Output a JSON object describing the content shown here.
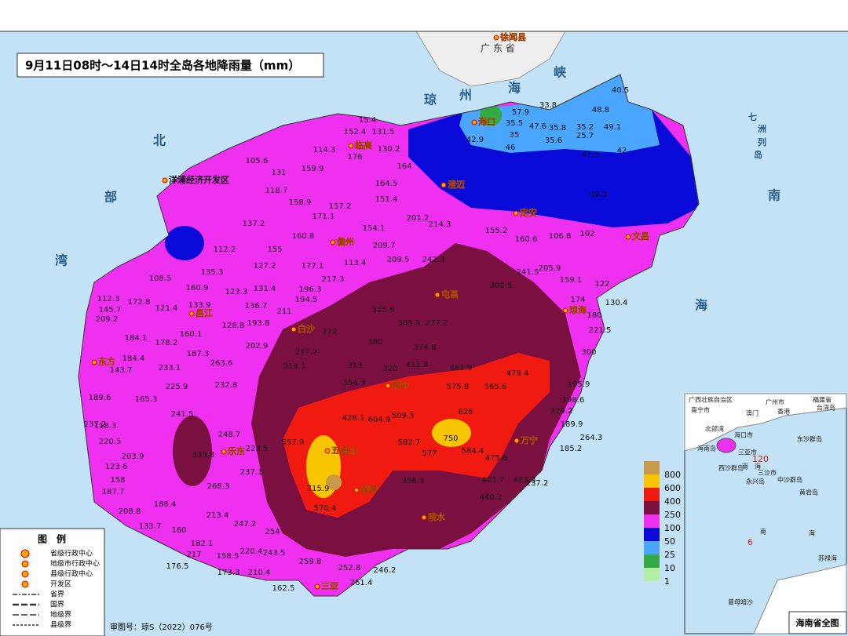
{
  "title": "9月11日08时～14日14时全岛各地降雨量（mm）",
  "province_label": "广 东 省",
  "sea_labels": [
    "琼",
    "州",
    "海",
    "峡",
    "北",
    "部",
    "湾",
    "南",
    "海",
    "七",
    "洲",
    "列",
    "岛"
  ],
  "cities": [
    "徐闻县",
    "海口",
    "文昌",
    "定安",
    "澄迈",
    "临高",
    "儋州",
    "屯昌",
    "琼海",
    "昌江",
    "东方",
    "白沙",
    "琼中",
    "万宁",
    "五指山",
    "保亭",
    "乐东",
    "陵水",
    "三亚",
    "洋浦经济开发区"
  ],
  "stations": [
    40.5,
    48.8,
    33.8,
    57.9,
    35.5,
    47.6,
    35.8,
    35.2,
    49.1,
    25.7,
    35.6,
    35.0,
    42.9,
    46.0,
    42.0,
    47.3,
    69.3,
    15.4,
    152.4,
    131.5,
    114.3,
    176.0,
    130.2,
    164.0,
    105.6,
    131.0,
    159.9,
    118.7,
    164.5,
    151.4,
    158.9,
    157.2,
    171.1,
    137.2,
    201.2,
    214.3,
    154.1,
    160.8,
    155.2,
    160.6,
    106.8,
    102.0,
    112.2,
    155.0,
    209.7,
    127.2,
    177.1,
    113.4,
    209.5,
    242.3,
    135.3,
    217.3,
    196.3,
    108.5,
    160.9,
    123.3,
    131.4,
    194.5,
    300.5,
    241.5,
    205.9,
    159.1,
    122.0,
    112.3,
    172.8,
    121.4,
    133.9,
    136.7,
    211.0,
    315.6,
    145.7,
    174.0,
    130.4,
    209.2,
    128.8,
    193.8,
    305.5,
    277.2,
    180.0,
    221.5,
    184.1,
    160.1,
    172.0,
    380.0,
    374.8,
    300.0,
    202.9,
    178.2,
    227.2,
    187.3,
    184.4,
    319.1,
    313.0,
    320.0,
    411.8,
    461.9,
    479.4,
    233.1,
    263.6,
    143.7,
    195.9,
    225.9,
    232.8,
    354.3,
    575.8,
    565.6,
    198.6,
    189.6,
    165.3,
    241.5,
    428.1,
    604.9,
    509.3,
    626.0,
    329.2,
    118.3,
    237.2,
    248.7,
    557.9,
    582.7,
    750.0,
    577.0,
    584.4,
    189.9,
    264.3,
    220.5,
    203.9,
    335.8,
    223.5,
    123.6,
    237.1,
    475.6,
    185.2,
    158.0,
    268.3,
    715.9,
    358.3,
    461.7,
    423.3,
    237.2,
    187.7,
    188.4,
    440.2,
    570.4,
    208.8,
    213.4,
    247.2,
    133.7,
    160.0,
    254.0,
    182.1,
    217.0,
    158.5,
    220.4,
    243.5,
    176.5,
    173.3,
    210.4,
    259.8,
    252.8,
    246.2,
    162.5,
    261.4
  ],
  "scale": {
    "labels": [
      "800",
      "600",
      "400",
      "250",
      "100",
      "50",
      "25",
      "10",
      "1"
    ],
    "colors": [
      "#c99a4a",
      "#f7c600",
      "#f01a10",
      "#7a1040",
      "#f030f0",
      "#0a0ad8",
      "#4aa6ff",
      "#33aa44",
      "#b4f0a4"
    ]
  },
  "map_legend": {
    "title": "图　例",
    "items": [
      "省级行政中心",
      "地级市行政中心",
      "县级行政中心",
      "开发区",
      "省界",
      "国界",
      "地级界",
      "县级界"
    ]
  },
  "approval": "审图号：琼S（2022）076号",
  "inset": {
    "title": "海南省全图",
    "labels": [
      "广西壮族自治区",
      "南宁市",
      "澳门",
      "广州市",
      "香港",
      "福建省",
      "台湾岛",
      "北部湾",
      "海口市",
      "海南岛",
      "三亚市",
      "南　海",
      "西沙群岛",
      "三沙市",
      "永兴岛",
      "中沙群岛",
      "东沙群岛",
      "黄岩岛",
      "南",
      "海",
      "曾母暗沙",
      "苏禄海",
      "120",
      "6"
    ]
  }
}
